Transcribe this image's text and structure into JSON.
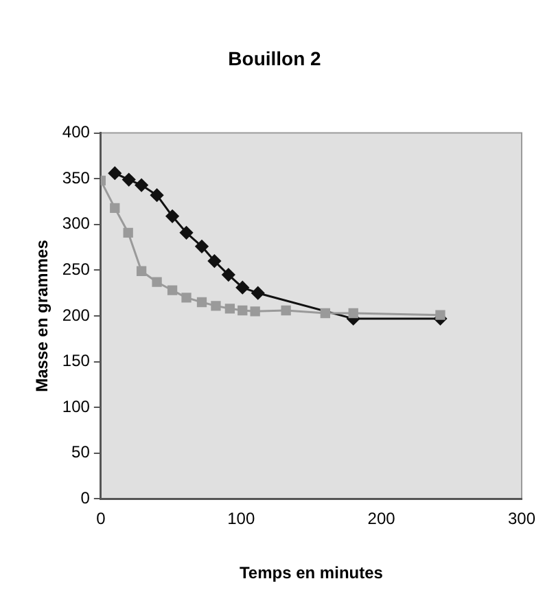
{
  "chart_data": {
    "type": "line",
    "title": "Bouillon 2",
    "xlabel": "Temps en minutes",
    "ylabel": "Masse en grammes",
    "xlim": [
      0,
      300
    ],
    "xticks": [
      0,
      100,
      200,
      300
    ],
    "ylim": [
      0,
      400
    ],
    "yticks": [
      0,
      50,
      100,
      150,
      200,
      250,
      300,
      350,
      400
    ],
    "grid": false,
    "legend": false,
    "series": [
      {
        "color": "#111111",
        "marker": "diamond",
        "x": [
          10,
          20,
          29,
          40,
          51,
          61,
          72,
          81,
          91,
          101,
          112,
          180,
          242
        ],
        "values": [
          356,
          349,
          343,
          332,
          309,
          291,
          276,
          260,
          245,
          231,
          225,
          197,
          197
        ]
      },
      {
        "color": "#9a9a9a",
        "marker": "square",
        "x": [
          0,
          10,
          19.5,
          29,
          40,
          51,
          61,
          72,
          82,
          92,
          101,
          110,
          132,
          160,
          180,
          242
        ],
        "values": [
          348,
          318,
          291,
          249,
          237,
          228,
          220,
          215,
          211,
          208,
          206,
          205,
          206,
          203,
          203,
          201
        ]
      }
    ]
  }
}
